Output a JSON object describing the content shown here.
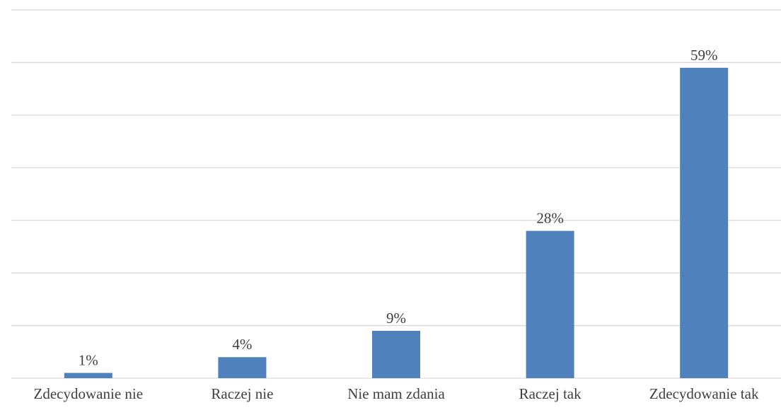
{
  "chart_data": {
    "type": "bar",
    "title": "",
    "xlabel": "",
    "ylabel": "",
    "categories": [
      "Zdecydowanie nie",
      "Raczej nie",
      "Nie mam zdania",
      "Raczej tak",
      "Zdecydowanie tak"
    ],
    "values": [
      1,
      4,
      9,
      28,
      59
    ],
    "data_labels": [
      "1%",
      "4%",
      "9%",
      "28%",
      "59%"
    ],
    "unit": "%",
    "ylim": [
      0,
      70
    ],
    "y_gridline_step": 10,
    "grid": true,
    "legend": "none",
    "y_tick_labels_visible": false,
    "bar_color": "#4f81bd"
  }
}
